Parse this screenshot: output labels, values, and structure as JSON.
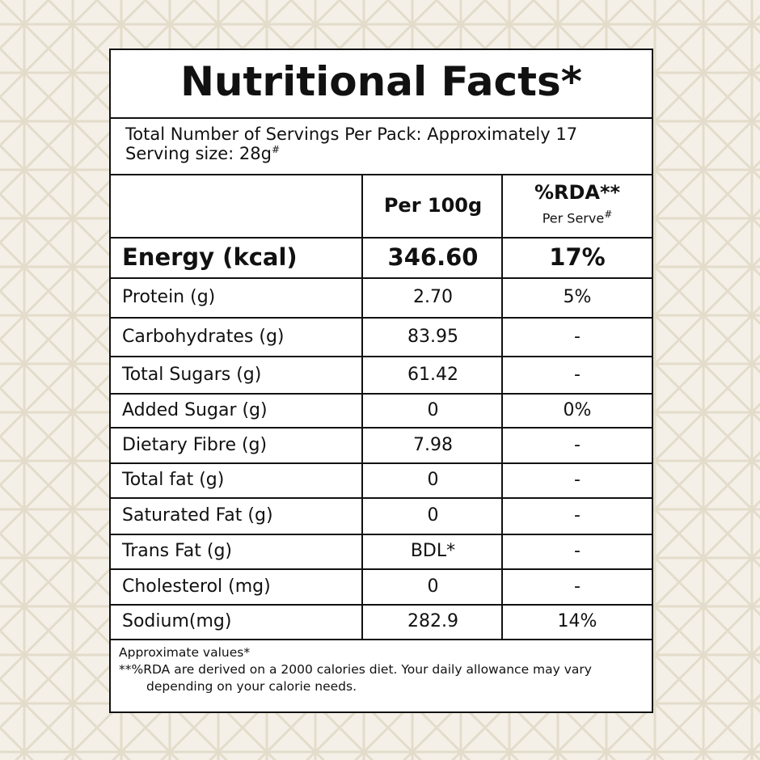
{
  "label": {
    "title": "Nutritional Facts*",
    "servings": {
      "line1": "Total Number of Servings Per Pack: Approximately 17",
      "line2": "Serving size: 28g",
      "line2_mark": "#"
    },
    "header": {
      "col1": "Per 100g",
      "col2": "%RDA**",
      "col2_sub": "Per Serve",
      "col2_sub_mark": "#"
    },
    "rows": [
      [
        "Energy (kcal)",
        "346.60",
        "17%"
      ],
      [
        "Protein (g)",
        "2.70",
        "5%"
      ],
      [
        "Carbohydrates (g)",
        "83.95",
        "-"
      ],
      [
        "Total Sugars (g)",
        "61.42",
        "-"
      ],
      [
        "Added Sugar (g)",
        "0",
        "0%"
      ],
      [
        "Dietary Fibre (g)",
        "7.98",
        "-"
      ],
      [
        "Total fat (g)",
        "0",
        "-"
      ],
      [
        "Saturated Fat (g)",
        "0",
        "-"
      ],
      [
        "Trans Fat (g)",
        "BDL*",
        "-"
      ],
      [
        "Cholesterol (mg)",
        "0",
        "-"
      ],
      [
        "Sodium(mg)",
        "282.9",
        "14%"
      ]
    ],
    "footer": [
      "Approximate values*",
      "**%RDA are derived on a 2000 calories diet. Your daily allowance may vary",
      "depending on your calorie needs."
    ]
  }
}
